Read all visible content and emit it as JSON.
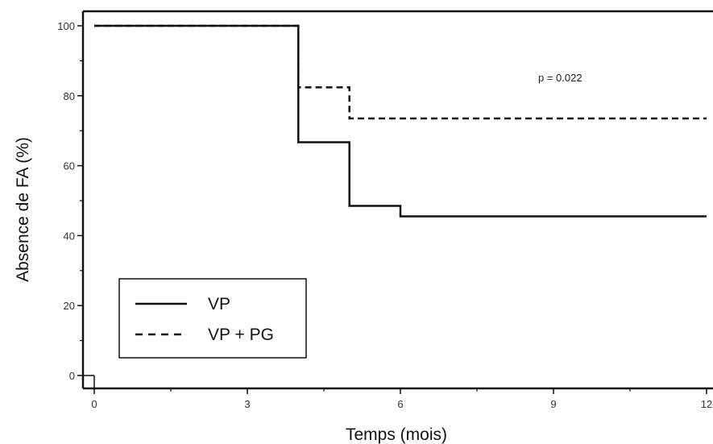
{
  "chart_data": {
    "type": "line",
    "title": "",
    "xlabel": "Temps (mois)",
    "ylabel": "Absence de FA (%)",
    "xlim": [
      0,
      12
    ],
    "ylim": [
      0,
      100
    ],
    "x_ticks": [
      0,
      3,
      6,
      9,
      12
    ],
    "x_tick_labels": [
      "0",
      "3",
      "6",
      "9",
      "12"
    ],
    "y_ticks": [
      0,
      20,
      40,
      60,
      80,
      100
    ],
    "y_tick_labels": [
      "0",
      "20",
      "40",
      "60",
      "80",
      "100"
    ],
    "grid": false,
    "legend_position": "bottom-left",
    "annotation": "p = 0.022",
    "series": [
      {
        "name": "VP",
        "style": "solid",
        "color": "#111111",
        "x": [
          0,
          4,
          4,
          5,
          5,
          6,
          6,
          12
        ],
        "y": [
          100,
          100,
          66.7,
          66.7,
          48.5,
          48.5,
          45.5,
          45.5
        ]
      },
      {
        "name": "VP + PG",
        "style": "dashed",
        "color": "#111111",
        "x": [
          0,
          4,
          4,
          5,
          5,
          12
        ],
        "y": [
          100,
          100,
          82.4,
          82.4,
          73.5,
          73.5
        ]
      }
    ]
  }
}
